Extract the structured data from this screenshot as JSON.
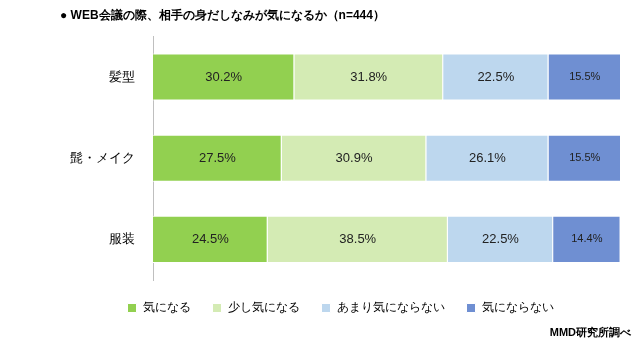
{
  "chart_data": {
    "type": "bar",
    "title": "● WEB会議の際、相手の身だしなみが気になるか（n=444）",
    "orientation": "horizontal",
    "stacked": true,
    "data_labels": true,
    "tick_labels": "y",
    "grid": false,
    "legend": "bottom",
    "categories": [
      "髪型",
      "髭・メイク",
      "服装"
    ],
    "xlim": [
      0,
      100
    ],
    "series": [
      {
        "name": "気になる",
        "color": "#92d050",
        "values": [
          30.2,
          27.5,
          24.5
        ],
        "value_labels": [
          "30.2%",
          "27.5%",
          "24.5%"
        ]
      },
      {
        "name": "少し気になる",
        "color": "#d4ebb4",
        "values": [
          31.8,
          30.9,
          38.5
        ],
        "value_labels": [
          "31.8%",
          "30.9%",
          "38.5%"
        ]
      },
      {
        "name": "あまり気にならない",
        "color": "#bdd7ee",
        "values": [
          22.5,
          26.1,
          22.5
        ],
        "value_labels": [
          "22.5%",
          "26.1%",
          "22.5%"
        ]
      },
      {
        "name": "気にならない",
        "color": "#6f8fd2",
        "values": [
          15.5,
          15.5,
          14.4
        ],
        "value_labels": [
          "15.5%",
          "15.5%",
          "14.4%"
        ]
      }
    ],
    "annotations": [
      "MMD研究所調べ"
    ]
  }
}
